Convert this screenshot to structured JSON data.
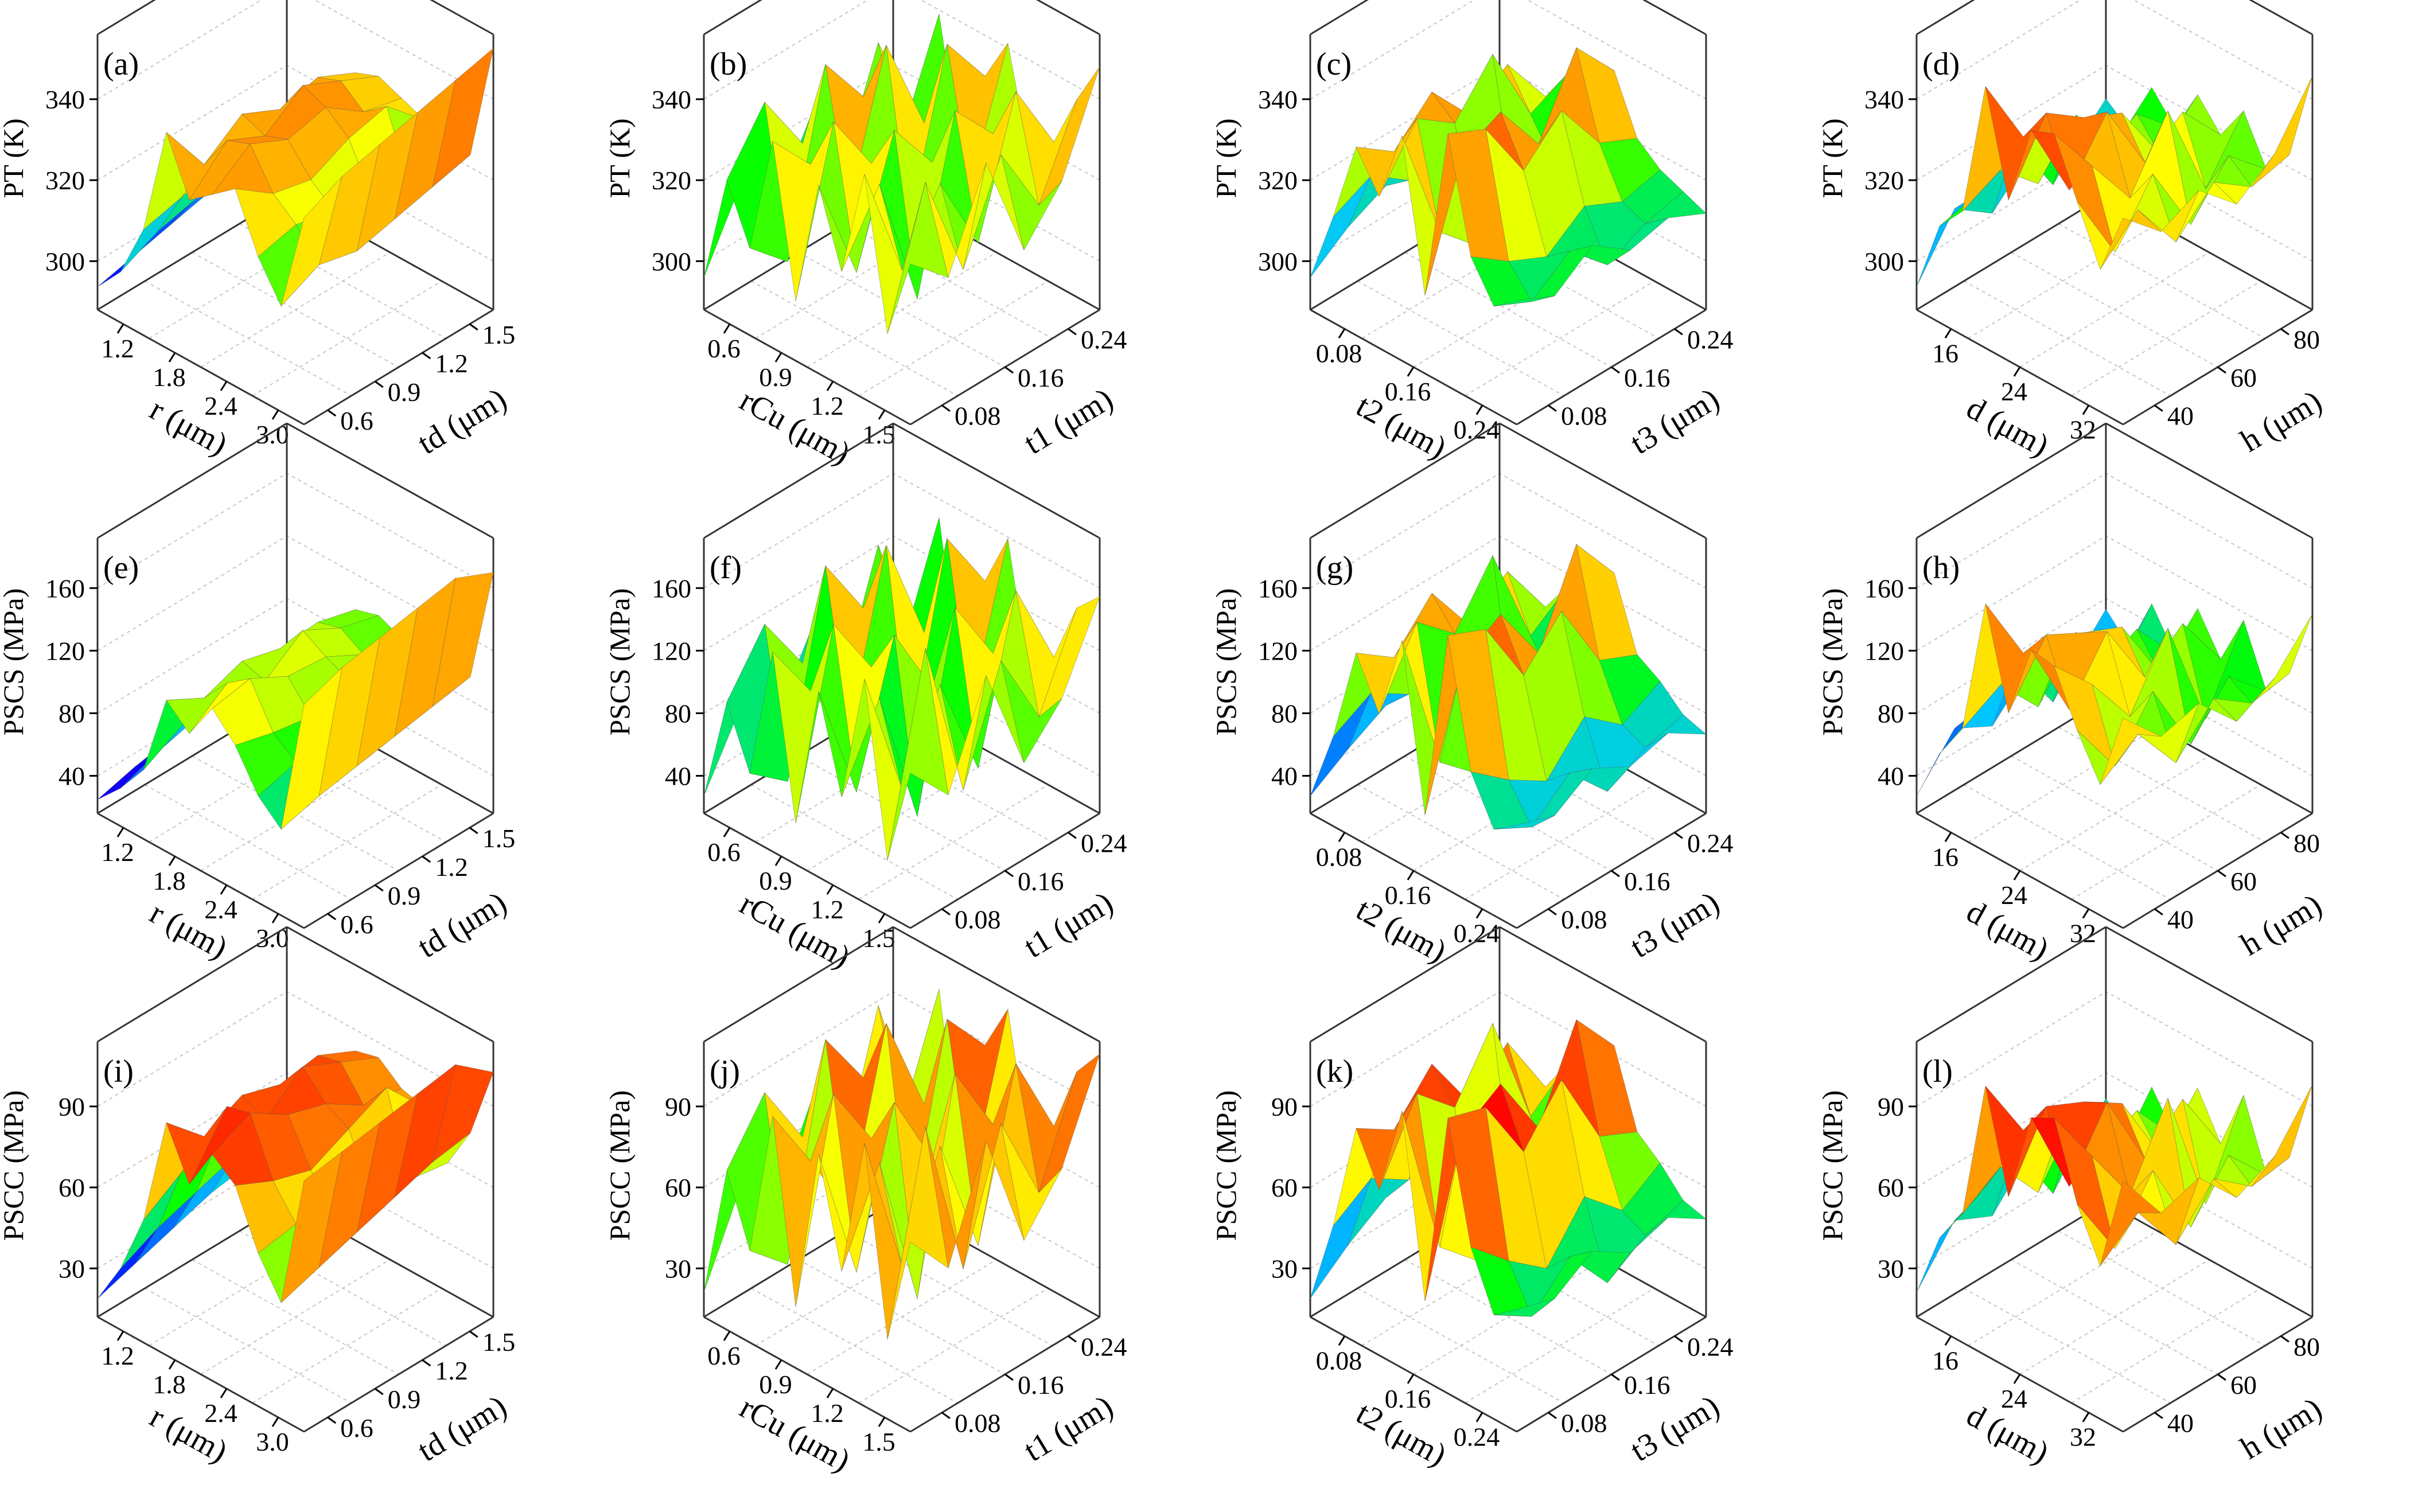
{
  "figure_title": "",
  "colormap": [
    "#5a00c8",
    "#0000ff",
    "#00c8ff",
    "#00ff00",
    "#ffff00",
    "#ff8000",
    "#ff0000",
    "#b40000"
  ],
  "chart_data": [
    {
      "type": "surface3d",
      "panel_label": "(a)",
      "zlabel": "PT (K)",
      "zticks": [
        "300",
        "320",
        "340"
      ],
      "zlim": [
        295,
        355
      ],
      "xlabel": "r (μm)",
      "xticks": [
        "1.2",
        "1.8",
        "2.4",
        "3.0"
      ],
      "ylabel": "td (μm)",
      "yticks": [
        "0.6",
        "0.9",
        "1.2",
        "1.5"
      ],
      "grid_z": [
        [
          300,
          306,
          318,
          342,
          330,
          334,
          338,
          326,
          318,
          340
        ],
        [
          302,
          310,
          320,
          330,
          338,
          340,
          332,
          328,
          322,
          344
        ],
        [
          304,
          312,
          322,
          336,
          334,
          336,
          330,
          326,
          320,
          346
        ],
        [
          306,
          314,
          324,
          332,
          340,
          338,
          334,
          324,
          322,
          348
        ],
        [
          308,
          316,
          320,
          334,
          336,
          332,
          336,
          322,
          324,
          350
        ],
        [
          310,
          318,
          322,
          330,
          332,
          330,
          328,
          320,
          326,
          352
        ]
      ]
    },
    {
      "type": "surface3d",
      "panel_label": "(b)",
      "zlabel": "PT (K)",
      "zticks": [
        "300",
        "320",
        "340"
      ],
      "zlim": [
        295,
        355
      ],
      "xlabel": "rCu (μm)",
      "xticks": [
        "0.6",
        "0.9",
        "1.2",
        "1.5"
      ],
      "ylabel": "t1 (μm)",
      "yticks": [
        "0.08",
        "0.16",
        "0.24"
      ],
      "grid_z": [
        [
          302,
          326,
          314,
          340,
          308,
          336,
          320,
          344,
          312,
          330
        ],
        [
          318,
          338,
          306,
          330,
          342,
          312,
          334,
          318,
          340,
          322
        ],
        [
          310,
          324,
          344,
          316,
          328,
          338,
          304,
          332,
          316,
          342
        ],
        [
          326,
          312,
          332,
          346,
          310,
          326,
          340,
          314,
          336,
          318
        ],
        [
          306,
          336,
          318,
          324,
          344,
          316,
          330,
          342,
          320,
          328
        ],
        [
          322,
          314,
          340,
          310,
          332,
          342,
          318,
          326,
          338,
          348
        ]
      ]
    },
    {
      "type": "surface3d",
      "panel_label": "(c)",
      "zlabel": "PT (K)",
      "zticks": [
        "300",
        "320",
        "340"
      ],
      "zlim": [
        295,
        355
      ],
      "xlabel": "t2 (μm)",
      "xticks": [
        "0.08",
        "0.16",
        "0.24"
      ],
      "ylabel": "t3 (μm)",
      "yticks": [
        "0.08",
        "0.16",
        "0.24"
      ],
      "grid_z": [
        [
          302,
          318,
          336,
          328,
          344,
          312,
          350,
          326,
          318,
          322
        ],
        [
          308,
          322,
          330,
          340,
          318,
          338,
          346,
          320,
          314,
          318
        ],
        [
          312,
          316,
          338,
          334,
          310,
          342,
          332,
          316,
          320,
          324
        ],
        [
          316,
          326,
          328,
          344,
          314,
          330,
          340,
          322,
          312,
          318
        ],
        [
          310,
          320,
          334,
          326,
          318,
          346,
          328,
          318,
          316,
          320
        ],
        [
          314,
          318,
          322,
          330,
          312,
          336,
          324,
          320,
          318,
          316
        ]
      ]
    },
    {
      "type": "surface3d",
      "panel_label": "(d)",
      "zlabel": "PT (K)",
      "zticks": [
        "300",
        "320",
        "340"
      ],
      "zlim": [
        295,
        355
      ],
      "xlabel": "d (μm)",
      "xticks": [
        "16",
        "24",
        "32"
      ],
      "ylabel": "h (μm)",
      "yticks": [
        "40",
        "60",
        "80"
      ],
      "grid_z": [
        [
          300,
          316,
          322,
          352,
          330,
          348,
          350,
          338,
          326,
          340
        ],
        [
          312,
          318,
          326,
          336,
          344,
          330,
          338,
          322,
          334,
          332
        ],
        [
          306,
          324,
          318,
          330,
          338,
          342,
          326,
          334,
          322,
          336
        ],
        [
          314,
          310,
          328,
          322,
          334,
          326,
          340,
          318,
          330,
          328
        ],
        [
          308,
          320,
          316,
          326,
          320,
          332,
          318,
          328,
          324,
          334
        ],
        [
          316,
          312,
          324,
          318,
          328,
          322,
          330,
          320,
          326,
          346
        ]
      ]
    },
    {
      "type": "surface3d",
      "panel_label": "(e)",
      "zlabel": "PSCS (MPa)",
      "zticks": [
        "40",
        "80",
        "120",
        "160"
      ],
      "zlim": [
        20,
        180
      ],
      "xlabel": "r (μm)",
      "xticks": [
        "1.2",
        "1.8",
        "2.4",
        "3.0"
      ],
      "ylabel": "td (μm)",
      "yticks": [
        "0.6",
        "0.9",
        "1.2",
        "1.5"
      ],
      "grid_z": [
        [
          28,
          42,
          60,
          108,
          96,
          118,
          104,
          82,
          70,
          150
        ],
        [
          34,
          50,
          72,
          96,
          112,
          122,
          98,
          88,
          76,
          158
        ],
        [
          38,
          56,
          80,
          104,
          100,
          110,
          94,
          84,
          80,
          162
        ],
        [
          42,
          60,
          84,
          98,
          116,
          108,
          102,
          80,
          84,
          166
        ],
        [
          46,
          64,
          78,
          100,
          104,
          96,
          108,
          76,
          88,
          170
        ],
        [
          50,
          68,
          82,
          94,
          98,
          92,
          90,
          74,
          92,
          160
        ]
      ]
    },
    {
      "type": "surface3d",
      "panel_label": "(f)",
      "zlabel": "PSCS (MPa)",
      "zticks": [
        "40",
        "80",
        "120",
        "160"
      ],
      "zlim": [
        20,
        180
      ],
      "xlabel": "rCu (μm)",
      "xticks": [
        "0.6",
        "0.9",
        "1.2",
        "1.5"
      ],
      "ylabel": "t1 (μm)",
      "yticks": [
        "0.08",
        "0.16",
        "0.24"
      ],
      "grid_z": [
        [
          30,
          92,
          58,
          136,
          44,
          128,
          74,
          150,
          52,
          110
        ],
        [
          70,
          124,
          40,
          100,
          146,
          56,
          118,
          72,
          162,
          84
        ],
        [
          54,
          88,
          152,
          62,
          108,
          134,
          36,
          120,
          66,
          140
        ],
        [
          96,
          60,
          114,
          158,
          48,
          90,
          144,
          58,
          128,
          76
        ],
        [
          42,
          130,
          76,
          94,
          156,
          64,
          104,
          148,
          82,
          100
        ],
        [
          86,
          58,
          140,
          46,
          118,
          150,
          70,
          96,
          132,
          146
        ]
      ]
    },
    {
      "type": "surface3d",
      "panel_label": "(g)",
      "zlabel": "PSCS (MPa)",
      "zticks": [
        "40",
        "80",
        "120",
        "160"
      ],
      "zlim": [
        20,
        180
      ],
      "xlabel": "t2 (μm)",
      "xticks": [
        "0.08",
        "0.16",
        "0.24"
      ],
      "ylabel": "t3 (μm)",
      "yticks": [
        "0.08",
        "0.16",
        "0.24"
      ],
      "grid_z": [
        [
          30,
          72,
          128,
          100,
          150,
          56,
          168,
          96,
          70,
          80
        ],
        [
          44,
          84,
          112,
          140,
          66,
          132,
          158,
          78,
          58,
          72
        ],
        [
          56,
          70,
          136,
          120,
          46,
          146,
          118,
          64,
          76,
          86
        ],
        [
          64,
          96,
          104,
          152,
          60,
          110,
          142,
          88,
          52,
          74
        ],
        [
          50,
          80,
          122,
          92,
          72,
          160,
          100,
          70,
          64,
          80
        ],
        [
          62,
          74,
          88,
          108,
          56,
          130,
          90,
          82,
          70,
          66
        ]
      ]
    },
    {
      "type": "surface3d",
      "panel_label": "(h)",
      "zlabel": "PSCS (MPa)",
      "zticks": [
        "40",
        "80",
        "120",
        "160"
      ],
      "zlim": [
        20,
        180
      ],
      "xlabel": "d (μm)",
      "xticks": [
        "16",
        "24",
        "32"
      ],
      "ylabel": "h (μm)",
      "yticks": [
        "40",
        "60",
        "80"
      ],
      "grid_z": [
        [
          30,
          62,
          84,
          164,
          108,
          152,
          150,
          120,
          96,
          142
        ],
        [
          56,
          74,
          96,
          122,
          140,
          104,
          126,
          86,
          112,
          118
        ],
        [
          44,
          88,
          70,
          110,
          128,
          136,
          94,
          116,
          82,
          124
        ],
        [
          66,
          52,
          100,
          84,
          118,
          96,
          132,
          72,
          106,
          100
        ],
        [
          48,
          80,
          60,
          96,
          78,
          114,
          66,
          98,
          90,
          112
        ],
        [
          72,
          58,
          90,
          68,
          102,
          80,
          110,
          76,
          94,
          136
        ]
      ]
    },
    {
      "type": "surface3d",
      "panel_label": "(i)",
      "zlabel": "PSCC (MPa)",
      "zticks": [
        "30",
        "60",
        "90"
      ],
      "zlim": [
        10,
        100
      ],
      "xlabel": "r (μm)",
      "xticks": [
        "1.2",
        "1.8",
        "2.4",
        "3.0"
      ],
      "ylabel": "td (μm)",
      "yticks": [
        "0.6",
        "0.9",
        "1.2",
        "1.5"
      ],
      "grid_z": [
        [
          16,
          30,
          50,
          86,
          70,
          84,
          78,
          60,
          48,
          92
        ],
        [
          20,
          36,
          58,
          74,
          88,
          90,
          72,
          62,
          52,
          94
        ],
        [
          24,
          40,
          62,
          80,
          76,
          82,
          68,
          58,
          56,
          96
        ],
        [
          28,
          44,
          64,
          76,
          86,
          78,
          74,
          56,
          60,
          98
        ],
        [
          30,
          46,
          60,
          78,
          80,
          70,
          80,
          54,
          64,
          100
        ],
        [
          34,
          48,
          62,
          72,
          74,
          68,
          66,
          52,
          66,
          90
        ]
      ]
    },
    {
      "type": "surface3d",
      "panel_label": "(j)",
      "zlabel": "PSCC (MPa)",
      "zticks": [
        "30",
        "60",
        "90"
      ],
      "zlim": [
        10,
        100
      ],
      "xlabel": "rCu (μm)",
      "xticks": [
        "0.6",
        "0.9",
        "1.2",
        "1.5"
      ],
      "ylabel": "t1 (μm)",
      "yticks": [
        "0.08",
        "0.16",
        "0.24"
      ],
      "grid_z": [
        [
          18,
          62,
          40,
          88,
          30,
          84,
          50,
          96,
          36,
          72
        ],
        [
          46,
          80,
          28,
          66,
          92,
          38,
          78,
          48,
          98,
          56
        ],
        [
          36,
          58,
          94,
          42,
          70,
          86,
          26,
          80,
          44,
          90
        ],
        [
          64,
          40,
          74,
          96,
          34,
          60,
          92,
          40,
          84,
          50
        ],
        [
          30,
          86,
          52,
          62,
          94,
          44,
          68,
          92,
          54,
          66
        ],
        [
          58,
          40,
          88,
          32,
          78,
          94,
          48,
          64,
          86,
          96
        ]
      ]
    },
    {
      "type": "surface3d",
      "panel_label": "(k)",
      "zlabel": "PSCC (MPa)",
      "zticks": [
        "30",
        "60",
        "90"
      ],
      "zlim": [
        10,
        100
      ],
      "xlabel": "t2 (μm)",
      "xticks": [
        "0.08",
        "0.16",
        "0.24"
      ],
      "ylabel": "t3 (μm)",
      "yticks": [
        "0.08",
        "0.16",
        "0.24"
      ],
      "grid_z": [
        [
          16,
          44,
          80,
          64,
          94,
          36,
          100,
          62,
          44,
          50
        ],
        [
          26,
          52,
          72,
          88,
          42,
          84,
          96,
          50,
          36,
          46
        ],
        [
          34,
          44,
          86,
          76,
          30,
          92,
          74,
          40,
          48,
          54
        ],
        [
          40,
          60,
          66,
          96,
          38,
          70,
          90,
          56,
          32,
          46
        ],
        [
          32,
          50,
          78,
          58,
          46,
          98,
          64,
          44,
          40,
          50
        ],
        [
          38,
          46,
          56,
          68,
          36,
          82,
          58,
          52,
          44,
          42
        ]
      ]
    },
    {
      "type": "surface3d",
      "panel_label": "(l)",
      "zlabel": "PSCC (MPa)",
      "zticks": [
        "30",
        "60",
        "90"
      ],
      "zlim": [
        10,
        100
      ],
      "xlabel": "d (μm)",
      "xticks": [
        "16",
        "24",
        "32"
      ],
      "ylabel": "h (μm)",
      "yticks": [
        "40",
        "60",
        "80"
      ],
      "grid_z": [
        [
          18,
          40,
          52,
          98,
          66,
          96,
          100,
          76,
          60,
          92
        ],
        [
          34,
          46,
          60,
          76,
          88,
          66,
          80,
          54,
          70,
          74
        ],
        [
          28,
          54,
          44,
          70,
          82,
          86,
          60,
          72,
          52,
          78
        ],
        [
          42,
          32,
          62,
          54,
          74,
          60,
          84,
          46,
          66,
          64
        ],
        [
          30,
          50,
          38,
          60,
          50,
          72,
          42,
          62,
          56,
          70
        ],
        [
          44,
          36,
          56,
          44,
          64,
          50,
          70,
          48,
          58,
          86
        ]
      ]
    }
  ]
}
